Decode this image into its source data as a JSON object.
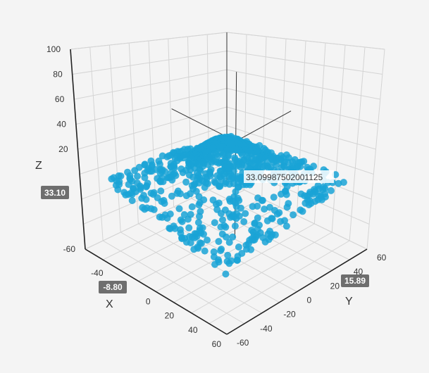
{
  "chart_data": {
    "type": "scatter",
    "title": "",
    "xlabel": "X",
    "ylabel": "Y",
    "zlabel": "Z",
    "xlim": [
      -60,
      60
    ],
    "ylim": [
      -60,
      60
    ],
    "zlim": [
      -60,
      100
    ],
    "x_ticks": [
      "-40",
      "-20",
      "0",
      "20",
      "40",
      "60"
    ],
    "y_ticks": [
      "-60",
      "-40",
      "-20",
      "0",
      "20",
      "40",
      "60"
    ],
    "z_ticks": [
      "-60",
      "20",
      "40",
      "60",
      "80",
      "100"
    ],
    "grid": true,
    "series": [
      {
        "color": "#1aa3d6",
        "function": "z = 50 * exp(-(x^2 + y^2) / 800)",
        "point_count": 900,
        "x_range": [
          -50,
          50
        ],
        "y_range": [
          -50,
          50
        ]
      }
    ],
    "highlighted_point": {
      "x": -8.8,
      "y": 15.89,
      "z": 33.09987502001125
    },
    "badges": {
      "x": "-8.80",
      "y": "15.89",
      "z": "33.10"
    },
    "tooltip": "33.09987502001125"
  }
}
